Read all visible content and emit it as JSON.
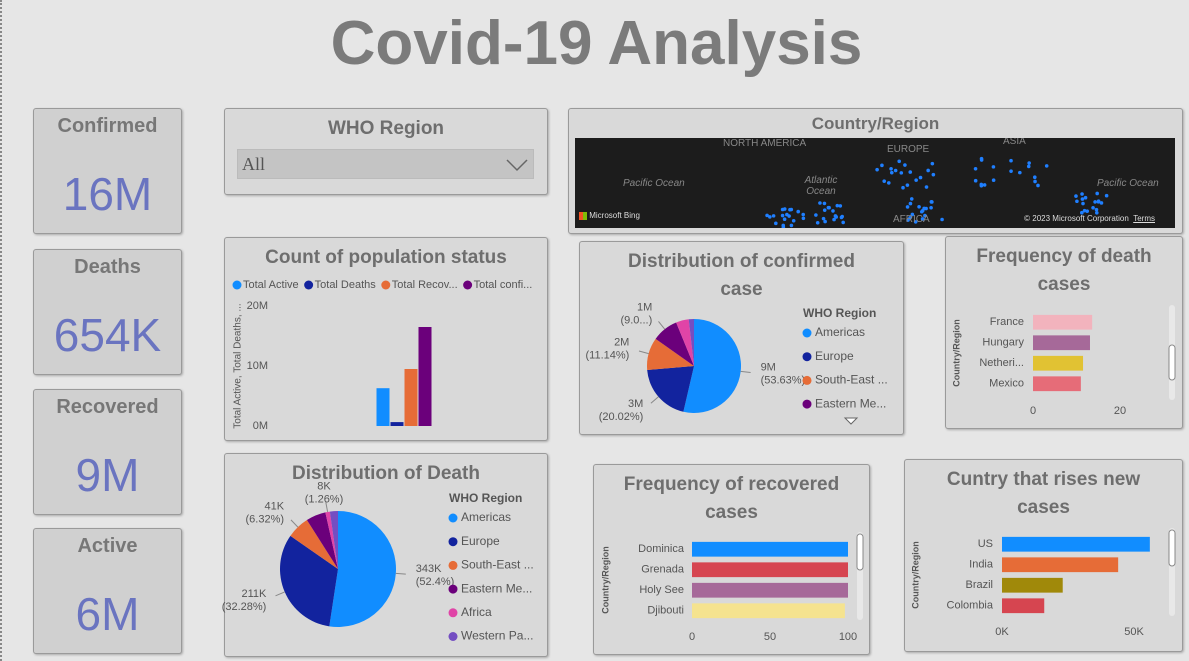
{
  "title": "Covid-19 Analysis",
  "cards": [
    {
      "label": "Confirmed",
      "value": "16M"
    },
    {
      "label": "Deaths",
      "value": "654K"
    },
    {
      "label": "Recovered",
      "value": "9M"
    },
    {
      "label": "Active",
      "value": "6M"
    }
  ],
  "slicer": {
    "title": "WHO Region",
    "selected": "All"
  },
  "map": {
    "title": "Country/Region",
    "labels": [
      "NORTH AMERICA",
      "EUROPE",
      "ASIA",
      "Pacific Ocean",
      "Atlantic Ocean",
      "AFRICA",
      "Pacific Ocean"
    ],
    "brand": "Microsoft Bing",
    "copyright": "© 2023 Microsoft Corporation",
    "terms": "Terms"
  },
  "chart_data": [
    {
      "type": "bar",
      "orientation": "vertical",
      "title": "Count of population status",
      "ylabel": "Total Active, Total Deaths, ...",
      "categories": [
        null
      ],
      "series": [
        {
          "name": "Total Active",
          "color": "#118dff",
          "values": [
            6300000
          ]
        },
        {
          "name": "Total Deaths",
          "color": "#12239e",
          "values": [
            650000
          ]
        },
        {
          "name": "Total Recov...",
          "color": "#e66c37",
          "values": [
            9500000
          ]
        },
        {
          "name": "Total confi...",
          "color": "#6b007b",
          "values": [
            16500000
          ]
        }
      ],
      "ylim": [
        0,
        20000000
      ],
      "yticks": [
        {
          "value": 0,
          "label": "0M"
        },
        {
          "value": 10000000,
          "label": "10M"
        },
        {
          "value": 20000000,
          "label": "20M"
        }
      ]
    },
    {
      "type": "pie",
      "title": "Distribution of confirmed case",
      "legend_title": "WHO Region",
      "categories": [
        "Americas",
        "Europe",
        "South-East ...",
        "Eastern Me...",
        null,
        null
      ],
      "values": [
        53.63,
        20.02,
        11.14,
        9.0,
        4.4,
        1.8
      ],
      "value_labels": [
        "9M (53.63%)",
        "3M (20.02%)",
        "2M (11.14%)",
        "1M (9.0...)",
        null,
        null
      ],
      "colors": [
        "#118dff",
        "#12239e",
        "#e66c37",
        "#6b007b",
        "#e044a7",
        "#744ec2"
      ]
    },
    {
      "type": "pie",
      "title": "Distribution of Death",
      "legend_title": "WHO Region",
      "categories": [
        "Americas",
        "Europe",
        "South-East ...",
        "Eastern Me...",
        "Africa",
        "Western Pa..."
      ],
      "values": [
        52.4,
        32.28,
        6.32,
        5.5,
        1.26,
        2.24
      ],
      "value_labels": [
        "343K (52.4%)",
        "211K (32.28%)",
        "41K (6.32%)",
        null,
        "8K (1.26%)",
        null
      ],
      "colors": [
        "#118dff",
        "#12239e",
        "#e66c37",
        "#6b007b",
        "#e044a7",
        "#744ec2"
      ]
    },
    {
      "type": "bar",
      "orientation": "horizontal",
      "title": "Frequency of death cases",
      "ylabel": "Country/Region",
      "categories": [
        "France",
        "Hungary",
        "Netheri...",
        "Mexico"
      ],
      "values": [
        13.6,
        13.1,
        11.5,
        11
      ],
      "colors": [
        "#f2b3bd",
        "#a66999",
        "#e1c233",
        "#e66c78"
      ],
      "xlim": [
        0,
        30
      ],
      "xticks": [
        0,
        20
      ]
    },
    {
      "type": "bar",
      "orientation": "horizontal",
      "title": "Frequency of recovered cases",
      "ylabel": "Country/Region",
      "categories": [
        "Dominica",
        "Grenada",
        "Holy See",
        "Djibouti"
      ],
      "values": [
        100,
        100,
        100,
        98
      ],
      "colors": [
        "#118dff",
        "#d64550",
        "#a66999",
        "#f5e38f"
      ],
      "xlim": [
        0,
        100
      ],
      "xticks": [
        0,
        50,
        100
      ]
    },
    {
      "type": "bar",
      "orientation": "horizontal",
      "title": "Cuntry that rises new cases",
      "ylabel": "Country/Region",
      "categories": [
        "US",
        "India",
        "Brazil",
        "Colombia"
      ],
      "values": [
        56000,
        44000,
        23000,
        16000
      ],
      "colors": [
        "#118dff",
        "#e66c37",
        "#a0890a",
        "#d64550"
      ],
      "xlim": [
        0,
        60000
      ],
      "xticks": [
        {
          "value": 0,
          "label": "0K"
        },
        {
          "value": 50000,
          "label": "50K"
        }
      ]
    }
  ]
}
